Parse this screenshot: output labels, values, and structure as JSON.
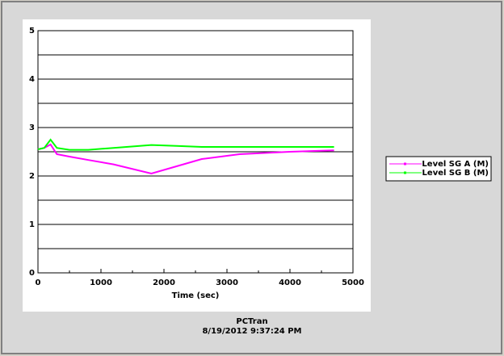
{
  "chart_data": {
    "type": "line",
    "x_label": "Time (sec)",
    "x": [
      0,
      100,
      200,
      300,
      500,
      800,
      1200,
      1800,
      2200,
      2600,
      3200,
      4000,
      4700
    ],
    "series": [
      {
        "name": "Level SG A (M)",
        "color": "#ff00ff",
        "values": [
          2.55,
          2.58,
          2.65,
          2.45,
          2.4,
          2.33,
          2.24,
          2.05,
          2.2,
          2.35,
          2.45,
          2.5,
          2.53
        ]
      },
      {
        "name": "Level SG B (M)",
        "color": "#00ff00",
        "values": [
          2.55,
          2.58,
          2.75,
          2.58,
          2.54,
          2.54,
          2.58,
          2.64,
          2.62,
          2.6,
          2.6,
          2.6,
          2.6
        ]
      }
    ],
    "xlim": [
      0,
      5000
    ],
    "xticks": [
      0,
      1000,
      2000,
      3000,
      4000,
      5000
    ],
    "x_minor_ticks": [
      500,
      1500,
      2500,
      3500,
      4500
    ],
    "ylim": [
      0,
      5
    ],
    "yticks": [
      0,
      1,
      2,
      3,
      4,
      5
    ],
    "y_minor_grid": [
      0.5,
      1.5,
      2.5,
      3.5,
      4.5
    ],
    "grid": true,
    "legend_position": "right"
  },
  "footer": {
    "program": "PCTran",
    "timestamp": "8/19/2012 9:37:24 PM"
  }
}
